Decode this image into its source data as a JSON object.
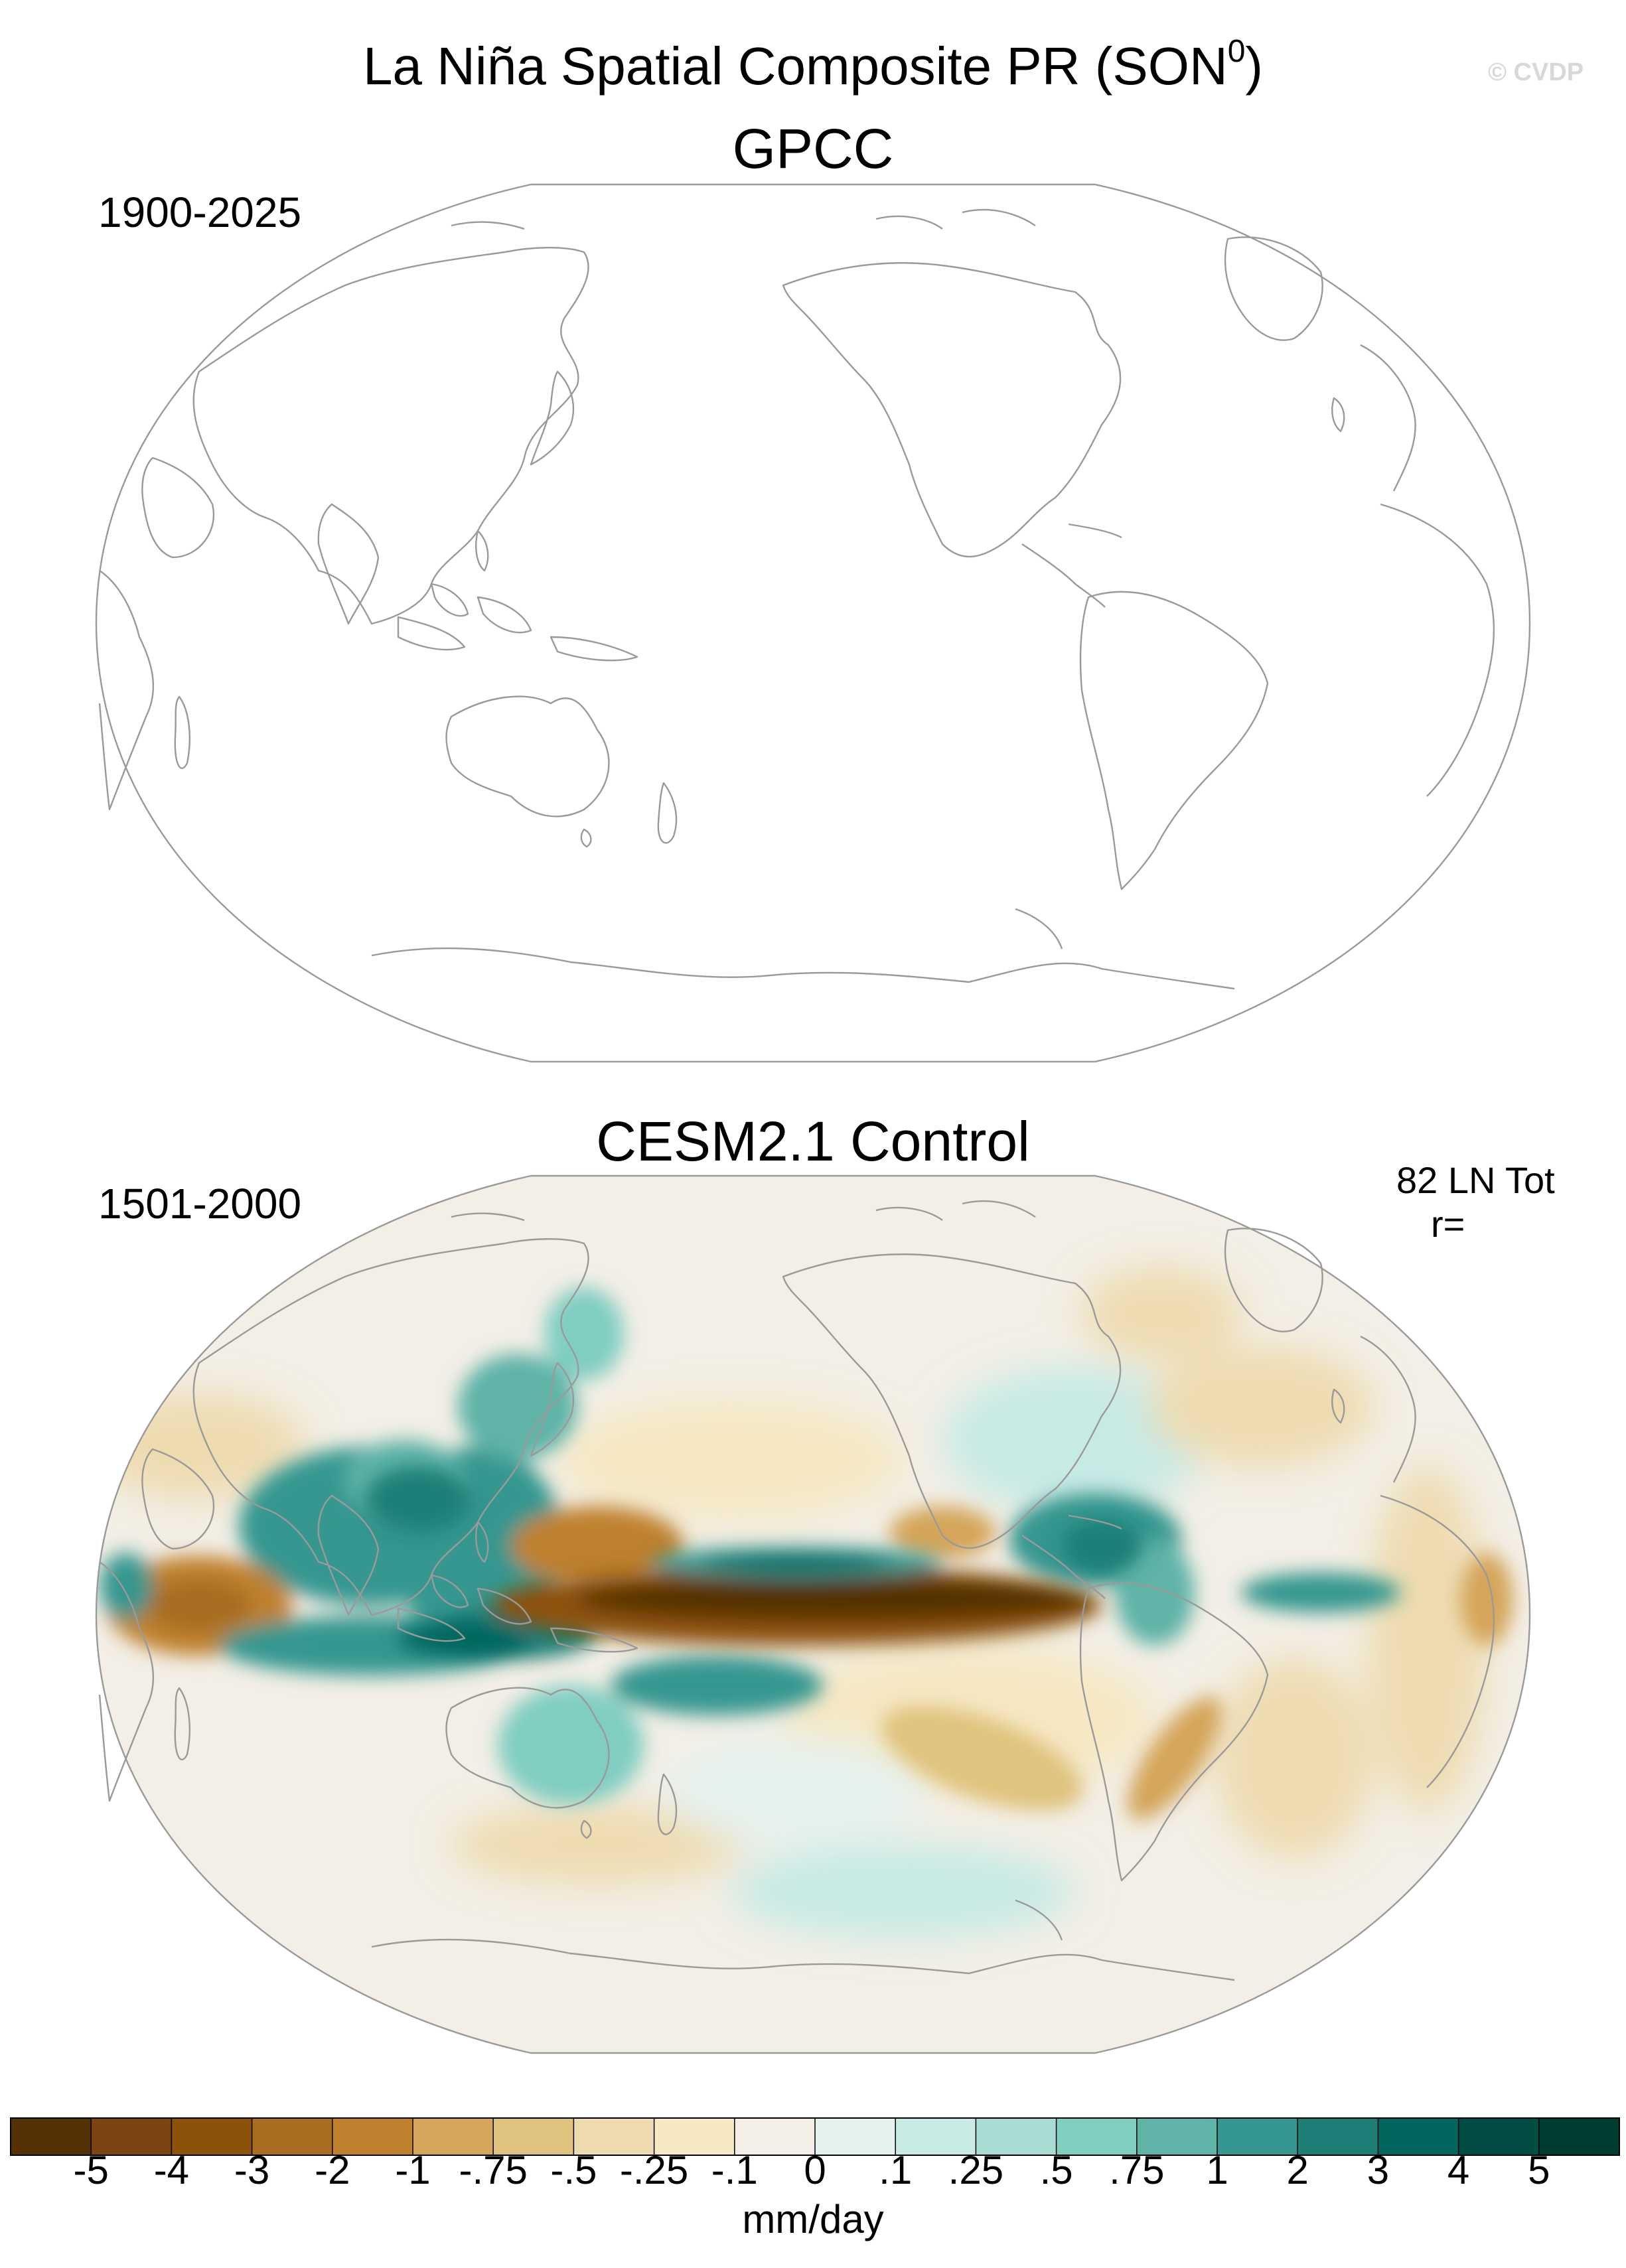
{
  "figure": {
    "title": "La Niña Spatial Composite PR (SON",
    "title_superscript": "0",
    "title_close": ")",
    "watermark": "© CVDP"
  },
  "panels": [
    {
      "name": "GPCC",
      "period": "1900-2025",
      "stats_line1": "",
      "stats_line2": "",
      "has_data": false
    },
    {
      "name": "CESM2.1 Control",
      "period": "1501-2000",
      "stats_line1": "82 LN Tot",
      "stats_line2": "r=",
      "has_data": true
    }
  ],
  "colorbar": {
    "units": "mm/day",
    "labels": [
      "-5",
      "-4",
      "-3",
      "-2",
      "-1",
      "-.75",
      "-.5",
      "-.25",
      "-.1",
      "0",
      ".1",
      ".25",
      ".5",
      ".75",
      "1",
      "2",
      "3",
      "4",
      "5"
    ],
    "colors": [
      "#543005",
      "#7a4510",
      "#8c510a",
      "#a86d20",
      "#bf812d",
      "#d4a55a",
      "#dfc27d",
      "#eedcb0",
      "#f6e8c3",
      "#f3efe6",
      "#e6f2ef",
      "#c7eae5",
      "#a8ddd5",
      "#80cdc1",
      "#5fb3a7",
      "#35978f",
      "#1f7f76",
      "#01665e",
      "#014d44",
      "#003c30"
    ]
  },
  "map": {
    "projection": "robinson",
    "central_longitude": "Pacific (180)",
    "coastline_color": "#9a9a9a",
    "ocean_fill_observed": "#ffffff"
  }
}
